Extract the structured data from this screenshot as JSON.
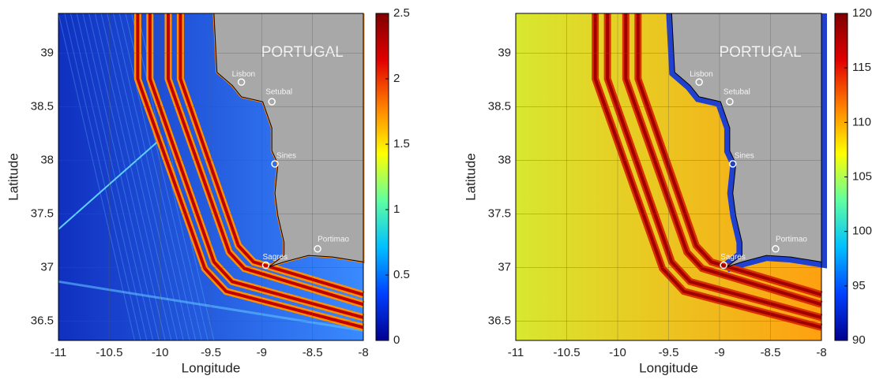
{
  "chart_data": [
    {
      "type": "heatmap",
      "xlabel": "Longitude",
      "ylabel": "Latitude",
      "xlim": [
        -11,
        -8
      ],
      "ylim": [
        36.32,
        39.37
      ],
      "xticks": [
        -11,
        -10.5,
        -10,
        -9.5,
        -9,
        -8.5,
        -8
      ],
      "yticks": [
        36.5,
        37,
        37.5,
        38,
        38.5,
        39
      ],
      "country": "PORTUGAL",
      "cities": [
        "Lisbon",
        "Setubal",
        "Sines",
        "Portimao",
        "Sagres"
      ],
      "colorbar": {
        "lim": [
          0,
          2.5
        ],
        "ticks": [
          0,
          0.5,
          1,
          1.5,
          2,
          2.5
        ],
        "colors": [
          "#00008f",
          "#0040ff",
          "#00c0ff",
          "#60ffa0",
          "#ffff00",
          "#ff8000",
          "#e00000",
          "#800000"
        ]
      },
      "background": [
        "#1030c0",
        "#3a8aff"
      ]
    },
    {
      "type": "heatmap",
      "xlabel": "Longitude",
      "ylabel": "Latitude",
      "xlim": [
        -11,
        -8
      ],
      "ylim": [
        36.32,
        39.37
      ],
      "xticks": [
        -11,
        -10.5,
        -10,
        -9.5,
        -9,
        -8.5,
        -8
      ],
      "yticks": [
        36.5,
        37,
        37.5,
        38,
        38.5,
        39
      ],
      "country": "PORTUGAL",
      "cities": [
        "Lisbon",
        "Setubal",
        "Sines",
        "Portimao",
        "Sagres"
      ],
      "colorbar": {
        "lim": [
          90,
          120
        ],
        "ticks": [
          90,
          95,
          100,
          105,
          110,
          115,
          120
        ],
        "colors": [
          "#00008f",
          "#0040ff",
          "#00c0ff",
          "#60ffa0",
          "#ffff00",
          "#ff8000",
          "#e00000",
          "#800000"
        ]
      },
      "background": [
        "#d8e830",
        "#ffa010"
      ]
    }
  ]
}
